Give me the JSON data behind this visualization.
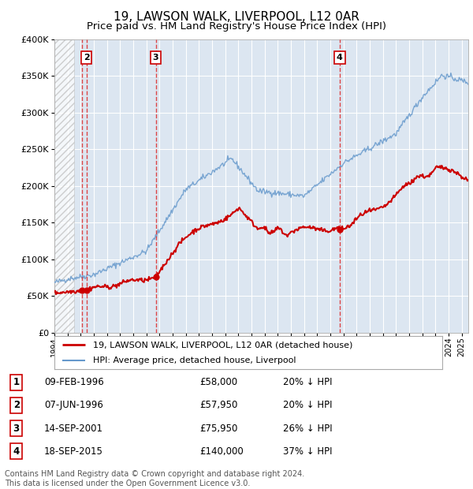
{
  "title": "19, LAWSON WALK, LIVERPOOL, L12 0AR",
  "subtitle": "Price paid vs. HM Land Registry's House Price Index (HPI)",
  "title_fontsize": 11,
  "subtitle_fontsize": 9.5,
  "ytick_values": [
    0,
    50000,
    100000,
    150000,
    200000,
    250000,
    300000,
    350000,
    400000
  ],
  "ylim": [
    0,
    400000
  ],
  "xlim_start": 1994.0,
  "xlim_end": 2025.5,
  "hatch_end": 1995.5,
  "plot_bg_color": "#dce6f1",
  "grid_color": "#ffffff",
  "transactions": [
    {
      "num": 1,
      "date": "09-FEB-1996",
      "date_x": 1996.11,
      "price": 58000,
      "label": "£58,000",
      "pct": "20% ↓ HPI"
    },
    {
      "num": 2,
      "date": "07-JUN-1996",
      "date_x": 1996.44,
      "price": 57950,
      "label": "£57,950",
      "pct": "20% ↓ HPI"
    },
    {
      "num": 3,
      "date": "14-SEP-2001",
      "date_x": 2001.71,
      "price": 75950,
      "label": "£75,950",
      "pct": "26% ↓ HPI"
    },
    {
      "num": 4,
      "date": "18-SEP-2015",
      "date_x": 2015.71,
      "price": 140000,
      "label": "£140,000",
      "pct": "37% ↓ HPI"
    }
  ],
  "legend_label_red": "19, LAWSON WALK, LIVERPOOL, L12 0AR (detached house)",
  "legend_label_blue": "HPI: Average price, detached house, Liverpool",
  "footer": "Contains HM Land Registry data © Crown copyright and database right 2024.\nThis data is licensed under the Open Government Licence v3.0.",
  "red_line_color": "#cc0000",
  "blue_line_color": "#6699cc",
  "marker_color": "#cc0000",
  "dashed_line_color": "#dd3333",
  "table_rows": [
    {
      "num": 1,
      "date": "09-FEB-1996",
      "price": "£58,000",
      "pct": "20% ↓ HPI"
    },
    {
      "num": 2,
      "date": "07-JUN-1996",
      "price": "£57,950",
      "pct": "20% ↓ HPI"
    },
    {
      "num": 3,
      "date": "14-SEP-2001",
      "price": "£75,950",
      "pct": "26% ↓ HPI"
    },
    {
      "num": 4,
      "date": "18-SEP-2015",
      "price": "£140,000",
      "pct": "37% ↓ HPI"
    }
  ]
}
